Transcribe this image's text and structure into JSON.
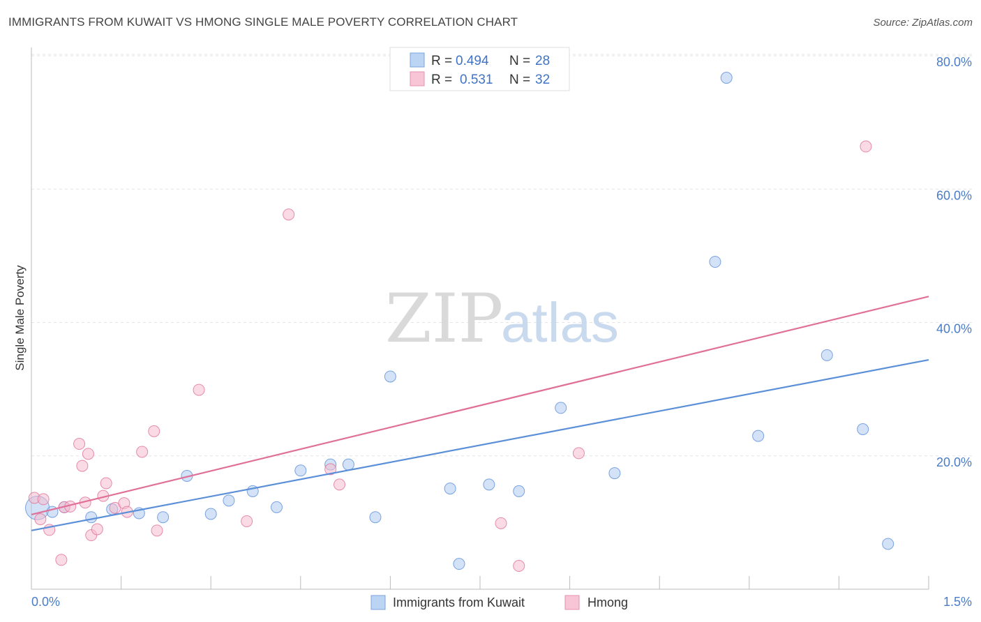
{
  "title": "IMMIGRANTS FROM KUWAIT VS HMONG SINGLE MALE POVERTY CORRELATION CHART",
  "source": "Source: ZipAtlas.com",
  "watermark": {
    "zip": "ZIP",
    "atlas": "atlas"
  },
  "chart_data": {
    "type": "scatter",
    "xlabel": "",
    "ylabel": "Single Male Poverty",
    "xlim": [
      0.0,
      1.5
    ],
    "ylim": [
      0.0,
      80.0
    ],
    "x_tick_labels": {
      "left": "0.0%",
      "right": "1.5%"
    },
    "y_ticks": [
      20,
      40,
      60,
      80
    ],
    "y_tick_labels": [
      "20.0%",
      "40.0%",
      "60.0%",
      "80.0%"
    ],
    "grid": true,
    "legend_placement": "top-center",
    "stats": [
      {
        "r_label": "R =",
        "r_value": "0.494",
        "n_label": "N =",
        "n_value": "28"
      },
      {
        "r_label": "R =",
        "r_value": "0.531",
        "n_label": "N =",
        "n_value": "32"
      }
    ],
    "series": [
      {
        "name": "Immigrants from Kuwait",
        "color": "#5b8fd8",
        "fill": "#aecbf0",
        "trend": {
          "x": [
            0.0,
            1.5
          ],
          "y": [
            8.8,
            34.4
          ]
        },
        "points": [
          {
            "x": 0.01,
            "y": 12.2,
            "big": true
          },
          {
            "x": 0.035,
            "y": 11.6
          },
          {
            "x": 0.055,
            "y": 12.3
          },
          {
            "x": 0.1,
            "y": 10.8
          },
          {
            "x": 0.135,
            "y": 12.0
          },
          {
            "x": 0.18,
            "y": 11.4
          },
          {
            "x": 0.22,
            "y": 10.8
          },
          {
            "x": 0.26,
            "y": 17.0
          },
          {
            "x": 0.3,
            "y": 11.3
          },
          {
            "x": 0.33,
            "y": 13.3
          },
          {
            "x": 0.37,
            "y": 14.7
          },
          {
            "x": 0.41,
            "y": 12.3
          },
          {
            "x": 0.45,
            "y": 17.8
          },
          {
            "x": 0.5,
            "y": 18.7
          },
          {
            "x": 0.53,
            "y": 18.7
          },
          {
            "x": 0.575,
            "y": 10.8
          },
          {
            "x": 0.6,
            "y": 31.9
          },
          {
            "x": 0.7,
            "y": 15.1
          },
          {
            "x": 0.715,
            "y": 3.8
          },
          {
            "x": 0.765,
            "y": 15.7
          },
          {
            "x": 0.815,
            "y": 14.7
          },
          {
            "x": 0.885,
            "y": 27.2
          },
          {
            "x": 0.975,
            "y": 17.4
          },
          {
            "x": 1.143,
            "y": 49.1
          },
          {
            "x": 1.162,
            "y": 76.7
          },
          {
            "x": 1.215,
            "y": 23.0
          },
          {
            "x": 1.33,
            "y": 35.1
          },
          {
            "x": 1.39,
            "y": 24.0
          },
          {
            "x": 1.432,
            "y": 6.8
          }
        ]
      },
      {
        "name": "Hmong",
        "color": "#e07098",
        "fill": "#f5bed0",
        "trend": {
          "x": [
            0.0,
            1.5
          ],
          "y": [
            11.2,
            43.9
          ]
        },
        "points": [
          {
            "x": 0.005,
            "y": 13.7
          },
          {
            "x": 0.015,
            "y": 10.5
          },
          {
            "x": 0.02,
            "y": 13.5
          },
          {
            "x": 0.03,
            "y": 8.9
          },
          {
            "x": 0.05,
            "y": 4.4
          },
          {
            "x": 0.055,
            "y": 12.3
          },
          {
            "x": 0.065,
            "y": 12.4
          },
          {
            "x": 0.08,
            "y": 21.8
          },
          {
            "x": 0.085,
            "y": 18.5
          },
          {
            "x": 0.09,
            "y": 13.0
          },
          {
            "x": 0.095,
            "y": 20.3
          },
          {
            "x": 0.1,
            "y": 8.1
          },
          {
            "x": 0.11,
            "y": 9.0
          },
          {
            "x": 0.12,
            "y": 14.0
          },
          {
            "x": 0.125,
            "y": 15.9
          },
          {
            "x": 0.14,
            "y": 12.2
          },
          {
            "x": 0.155,
            "y": 12.9
          },
          {
            "x": 0.16,
            "y": 11.6
          },
          {
            "x": 0.185,
            "y": 20.6
          },
          {
            "x": 0.21,
            "y": 8.8
          },
          {
            "x": 0.205,
            "y": 23.7
          },
          {
            "x": 0.28,
            "y": 29.9
          },
          {
            "x": 0.36,
            "y": 10.2
          },
          {
            "x": 0.43,
            "y": 56.2
          },
          {
            "x": 0.5,
            "y": 18.0
          },
          {
            "x": 0.515,
            "y": 15.7
          },
          {
            "x": 0.785,
            "y": 9.9
          },
          {
            "x": 0.815,
            "y": 3.5
          },
          {
            "x": 0.915,
            "y": 20.4
          },
          {
            "x": 1.395,
            "y": 66.4
          }
        ]
      }
    ]
  }
}
